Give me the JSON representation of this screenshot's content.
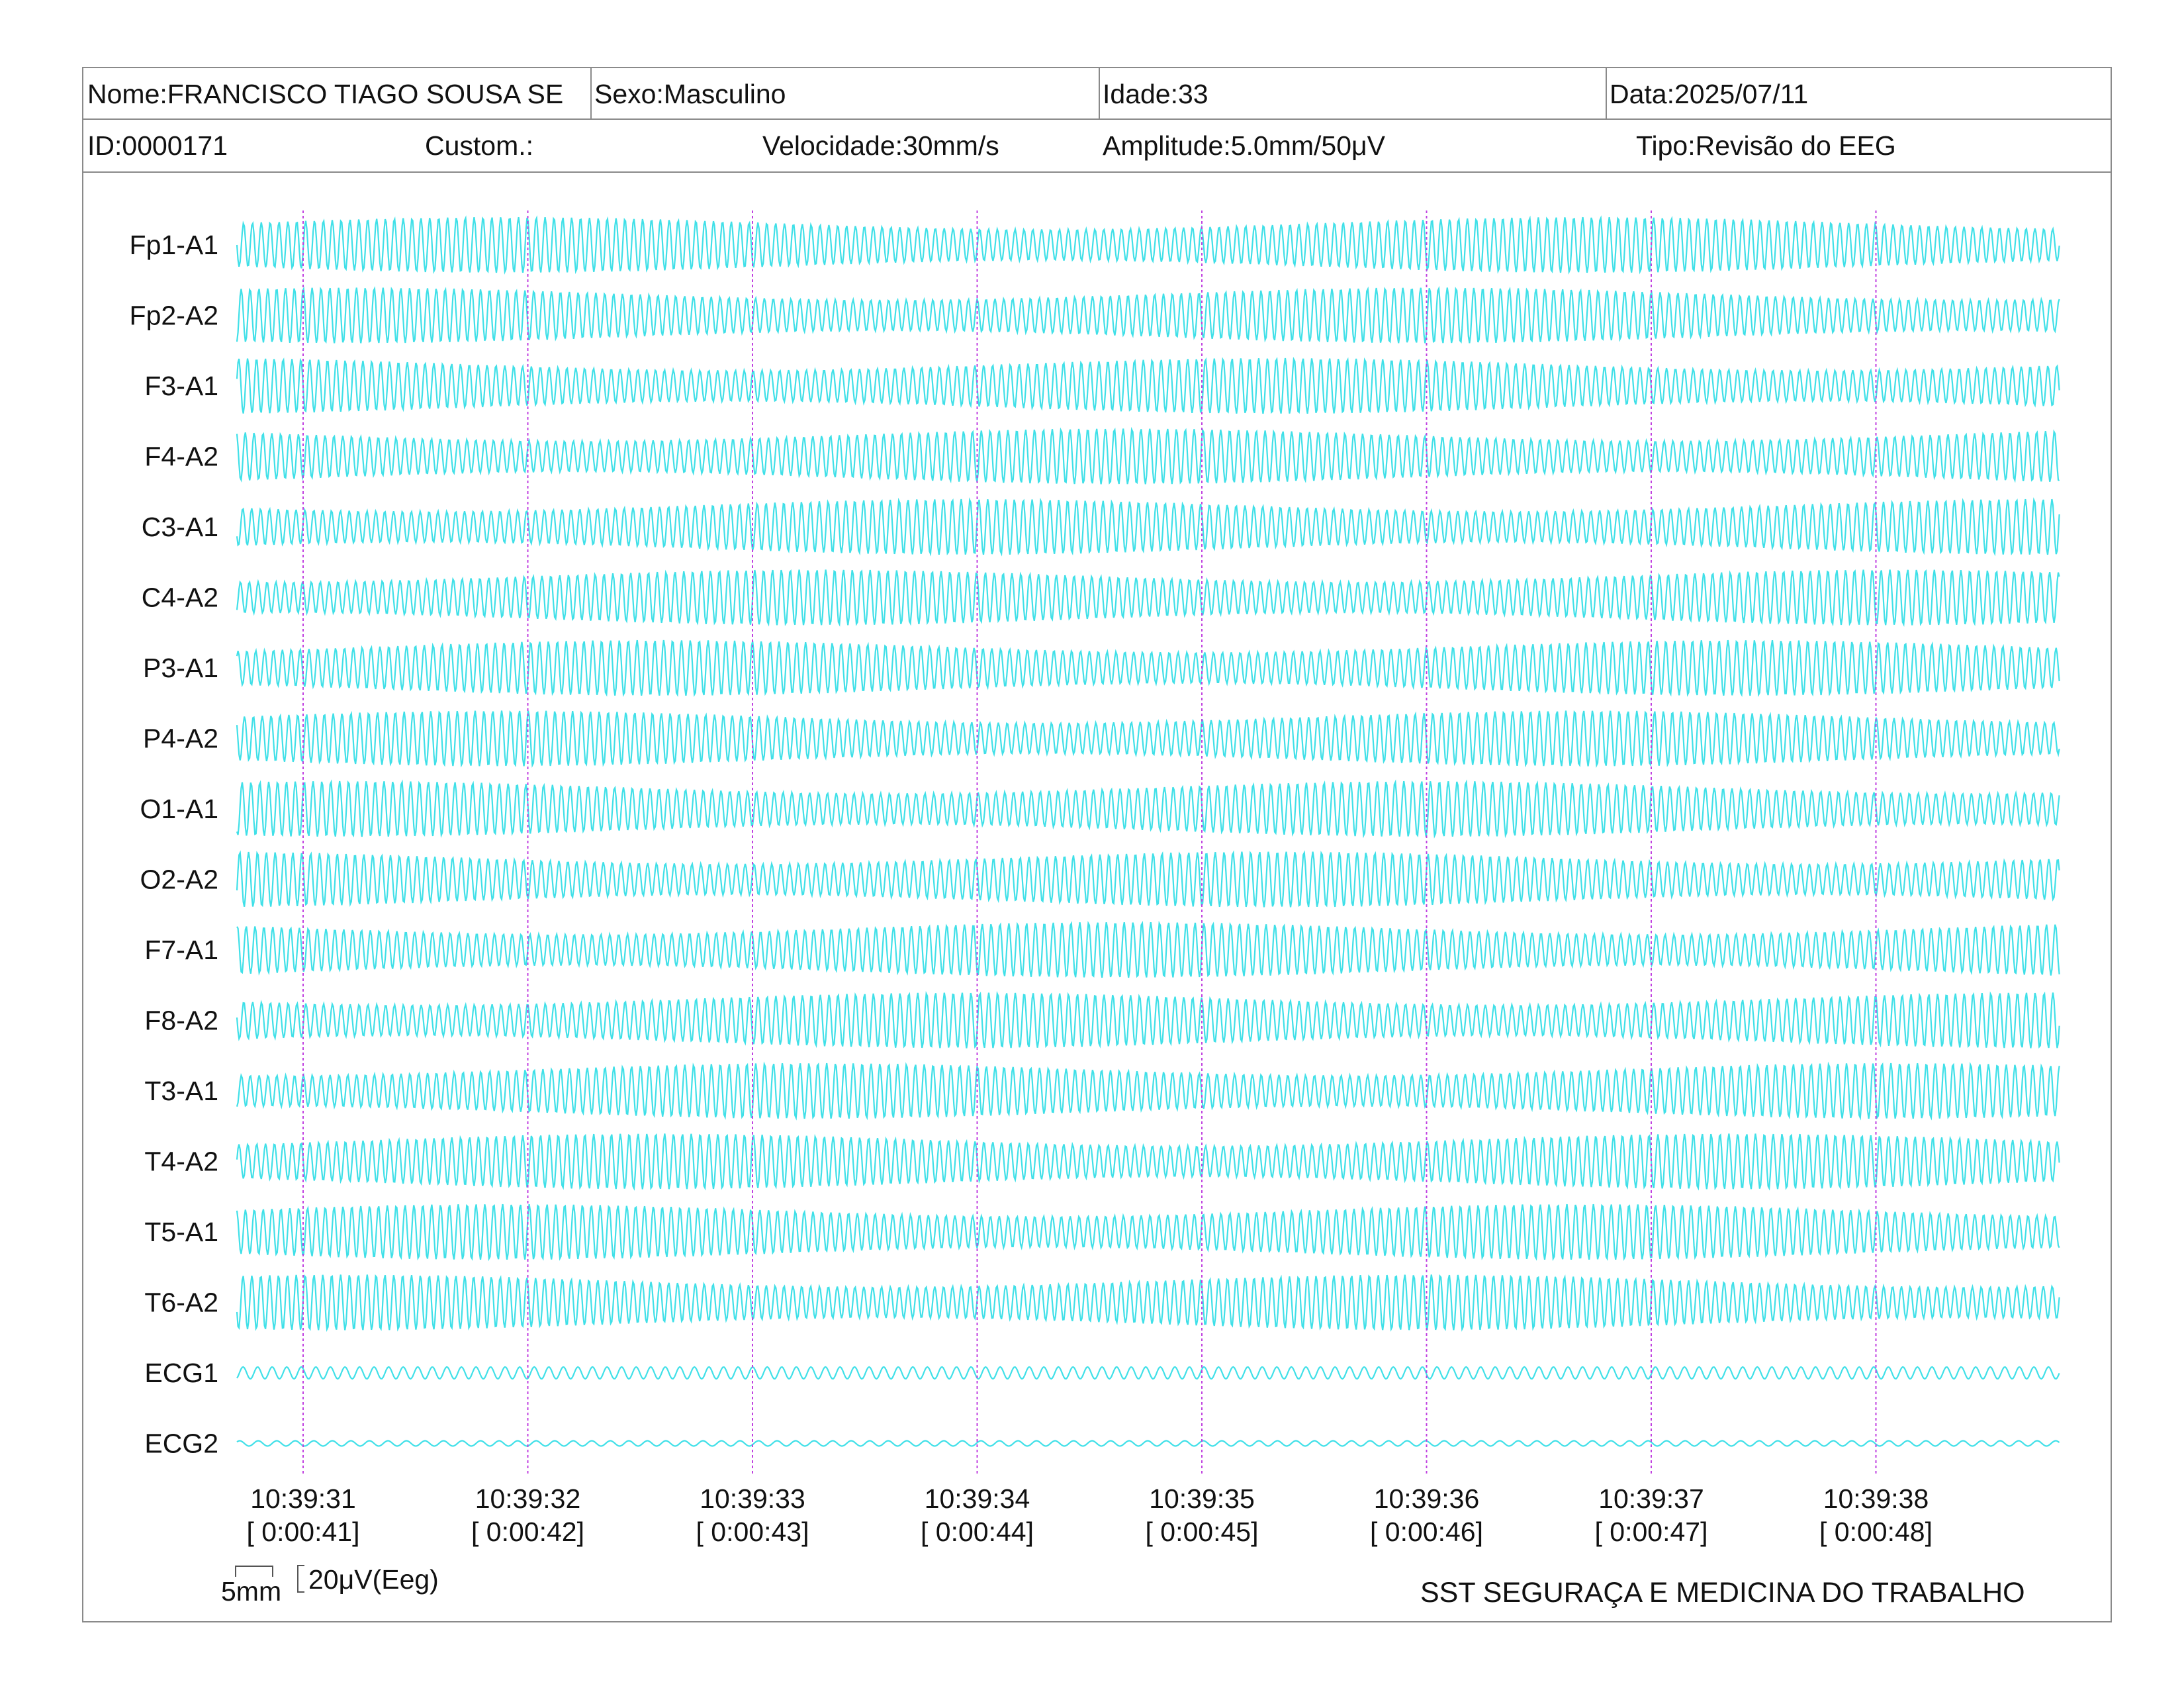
{
  "header": {
    "row1": {
      "name": "Nome:FRANCISCO TIAGO SOUSA SE",
      "sex": "Sexo:Masculino",
      "age": "Idade:33",
      "date": "Data:2025/07/11"
    },
    "row2": {
      "id": "ID:0000171",
      "custom": "Custom.:",
      "speed": "Velocidade:30mm/s",
      "amplitude": "Amplitude:5.0mm/50μV",
      "type": "Tipo:Revisão do EEG"
    }
  },
  "chart_data": {
    "type": "line",
    "trace_color": "#40e0e8",
    "marker_color": "#c040e0",
    "channels": [
      "Fp1-A1",
      "Fp2-A2",
      "F3-A1",
      "F4-A2",
      "C3-A1",
      "C4-A2",
      "P3-A1",
      "P4-A2",
      "O1-A1",
      "O2-A2",
      "F7-A1",
      "F8-A2",
      "T3-A1",
      "T4-A2",
      "T5-A1",
      "T6-A2",
      "ECG1",
      "ECG2"
    ],
    "time_ticks": [
      {
        "clock": "10:39:31",
        "elapsed": "[ 0:00:41]"
      },
      {
        "clock": "10:39:32",
        "elapsed": "[ 0:00:42]"
      },
      {
        "clock": "10:39:33",
        "elapsed": "[ 0:00:43]"
      },
      {
        "clock": "10:39:34",
        "elapsed": "[ 0:00:44]"
      },
      {
        "clock": "10:39:35",
        "elapsed": "[ 0:00:45]"
      },
      {
        "clock": "10:39:36",
        "elapsed": "[ 0:00:46]"
      },
      {
        "clock": "10:39:37",
        "elapsed": "[ 0:00:47]"
      },
      {
        "clock": "10:39:38",
        "elapsed": "[ 0:00:48]"
      }
    ],
    "scale_bar": {
      "time_label": "5mm",
      "amp_label": "20μV(Eeg)"
    }
  },
  "footer": "SST SEGURAÇA E MEDICINA DO TRABALHO"
}
